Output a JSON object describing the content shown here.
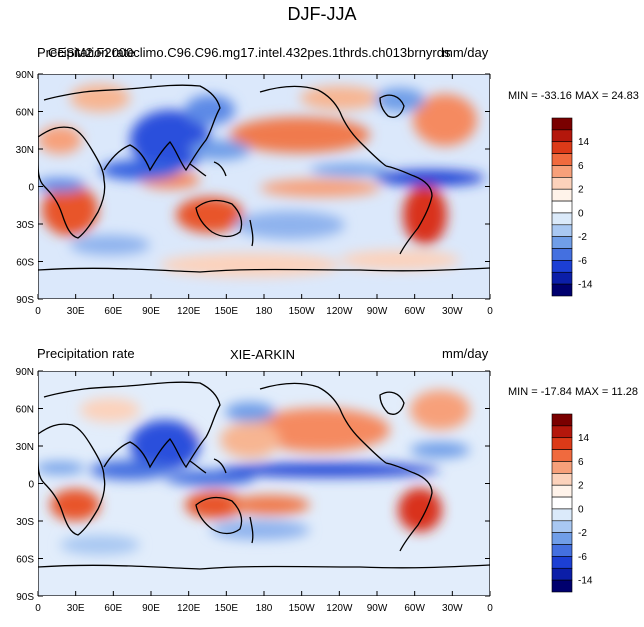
{
  "figure": {
    "title": "DJF-JJA"
  },
  "panels": [
    {
      "left_label": "Precipitation rate",
      "center_label": "CESM2.F2000climo.C96.C96.mg17.intel.432pes.1thrds.ch013brnyrds",
      "right_label": "mm/day",
      "stats": "MIN = -33.16 MAX =  24.83",
      "min": -33.16,
      "max": 24.83
    },
    {
      "left_label": "Precipitation rate",
      "center_label": "XIE-ARKIN",
      "right_label": "mm/day",
      "stats": "MIN = -17.84 MAX =  11.28",
      "min": -17.84,
      "max": 11.28
    }
  ],
  "lat_ticks": [
    "90N",
    "60N",
    "30N",
    "0",
    "30S",
    "60S",
    "90S"
  ],
  "lon_ticks": [
    "0",
    "30E",
    "60E",
    "90E",
    "120E",
    "150E",
    "180",
    "150W",
    "120W",
    "90W",
    "60W",
    "30W",
    "0"
  ],
  "colorbar": {
    "labels": [
      "14",
      "6",
      "2",
      "0",
      "-2",
      "-6",
      "-14"
    ],
    "colors": [
      "#7a0000",
      "#b4170c",
      "#dc3a18",
      "#f06a3e",
      "#f7a07a",
      "#fcd2bb",
      "#fff3ea",
      "#ffffff",
      "#dbeafa",
      "#a9c8f2",
      "#709ee8",
      "#4470e0",
      "#1c3fd4",
      "#0b1ea8",
      "#00006e"
    ]
  }
}
